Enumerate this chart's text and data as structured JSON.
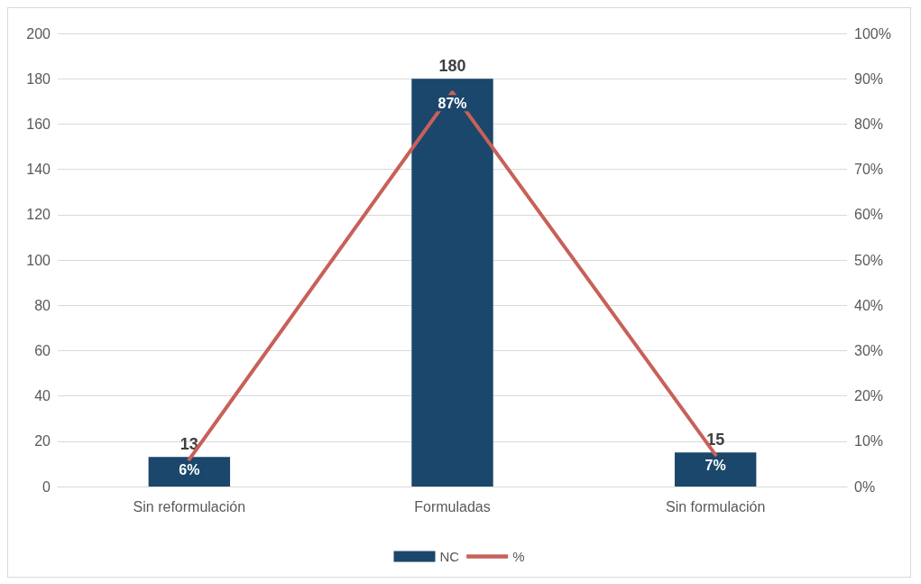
{
  "chart_data": {
    "type": "bar",
    "categories": [
      "Sin reformulación",
      "Formuladas",
      "Sin formulación"
    ],
    "series": [
      {
        "name": "NC",
        "color": "#1a476b",
        "values": [
          13,
          180,
          15
        ],
        "value_labels": [
          "13",
          "180",
          "15"
        ]
      },
      {
        "name": "%",
        "type": "line",
        "axis": "y2",
        "color": "#c8605a",
        "values": [
          6,
          87,
          7
        ],
        "value_labels": [
          "6%",
          "87%",
          "7%"
        ]
      }
    ],
    "ylim": [
      0,
      200
    ],
    "yticks": [
      0,
      20,
      40,
      60,
      80,
      100,
      120,
      140,
      160,
      180,
      200
    ],
    "y2lim": [
      0,
      100
    ],
    "y2ticks": [
      {
        "value": 0,
        "label": "0%"
      },
      {
        "value": 10,
        "label": "10%"
      },
      {
        "value": 20,
        "label": "20%"
      },
      {
        "value": 30,
        "label": "30%"
      },
      {
        "value": 40,
        "label": "40%"
      },
      {
        "value": 50,
        "label": "50%"
      },
      {
        "value": 60,
        "label": "60%"
      },
      {
        "value": 70,
        "label": "70%"
      },
      {
        "value": 80,
        "label": "80%"
      },
      {
        "value": 90,
        "label": "90%"
      },
      {
        "value": 100,
        "label": "100%"
      }
    ],
    "grid": "y",
    "legend": "bottom",
    "marker": "none",
    "line_style": "solid"
  }
}
